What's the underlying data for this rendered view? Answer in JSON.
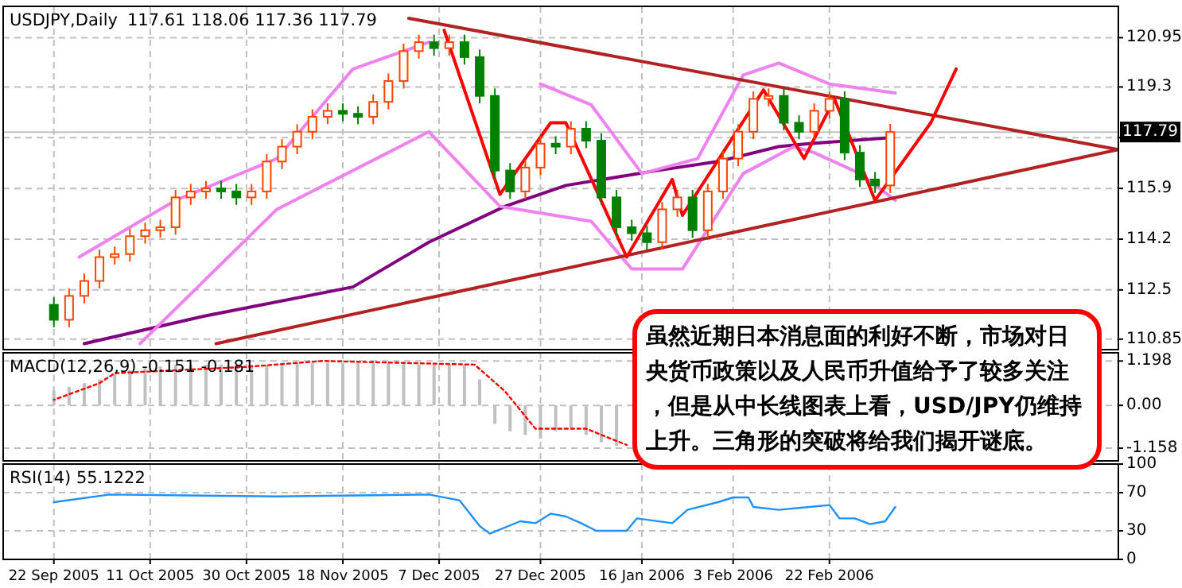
{
  "chart_data": [
    {
      "type": "candlestick",
      "title": "USDJPY,Daily",
      "subtitle": "117.61 118.06 117.36 117.79",
      "x": [
        "2005-09-22",
        "2005-09-25",
        "2005-09-28",
        "2005-10-01",
        "2005-10-04",
        "2005-10-07",
        "2005-10-10",
        "2005-10-13",
        "2005-10-16",
        "2005-10-19",
        "2005-10-22",
        "2005-10-25",
        "2005-10-28",
        "2005-10-31",
        "2005-11-03",
        "2005-11-06",
        "2005-11-09",
        "2005-11-12",
        "2005-11-15",
        "2005-11-18",
        "2005-11-21",
        "2005-11-24",
        "2005-11-27",
        "2005-11-30",
        "2005-12-03",
        "2005-12-06",
        "2005-12-09",
        "2005-12-12",
        "2005-12-15",
        "2005-12-18",
        "2005-12-21",
        "2005-12-24",
        "2005-12-27",
        "2005-12-30",
        "2006-01-02",
        "2006-01-05",
        "2006-01-08",
        "2006-01-11",
        "2006-01-14",
        "2006-01-17",
        "2006-01-20",
        "2006-01-23",
        "2006-01-26",
        "2006-01-29",
        "2006-02-01",
        "2006-02-04",
        "2006-02-07",
        "2006-02-10",
        "2006-02-13",
        "2006-02-16",
        "2006-02-19",
        "2006-02-22",
        "2006-02-25",
        "2006-02-28",
        "2006-03-03",
        "2006-03-06"
      ],
      "ohlc": [
        [
          112.0,
          112.25,
          111.25,
          111.5
        ],
        [
          111.5,
          112.55,
          111.25,
          112.3
        ],
        [
          112.3,
          113.05,
          112.05,
          112.8
        ],
        [
          112.8,
          113.85,
          112.55,
          113.6
        ],
        [
          113.6,
          113.95,
          113.35,
          113.7
        ],
        [
          113.7,
          114.55,
          113.45,
          114.3
        ],
        [
          114.3,
          114.75,
          114.05,
          114.5
        ],
        [
          114.5,
          114.85,
          114.25,
          114.6
        ],
        [
          114.6,
          115.85,
          114.35,
          115.6
        ],
        [
          115.6,
          116.05,
          115.35,
          115.8
        ],
        [
          115.8,
          116.15,
          115.55,
          115.9
        ],
        [
          115.9,
          116.15,
          115.55,
          115.8
        ],
        [
          115.8,
          116.05,
          115.35,
          115.6
        ],
        [
          115.6,
          116.05,
          115.35,
          115.8
        ],
        [
          115.8,
          117.05,
          115.55,
          116.8
        ],
        [
          116.8,
          117.55,
          116.55,
          117.3
        ],
        [
          117.3,
          118.05,
          117.05,
          117.8
        ],
        [
          117.8,
          118.55,
          117.55,
          118.3
        ],
        [
          118.3,
          118.75,
          118.05,
          118.5
        ],
        [
          118.5,
          118.75,
          118.15,
          118.4
        ],
        [
          118.4,
          118.65,
          118.05,
          118.3
        ],
        [
          118.3,
          119.05,
          118.05,
          118.8
        ],
        [
          118.8,
          119.75,
          118.55,
          119.5
        ],
        [
          119.5,
          120.75,
          119.25,
          120.5
        ],
        [
          120.5,
          121.05,
          120.25,
          120.8
        ],
        [
          120.8,
          121.05,
          120.35,
          120.6
        ],
        [
          120.6,
          121.05,
          120.35,
          120.8
        ],
        [
          120.8,
          121.05,
          120.05,
          120.3
        ],
        [
          120.3,
          120.55,
          118.75,
          119.0
        ],
        [
          119.0,
          119.25,
          116.25,
          116.5
        ],
        [
          116.5,
          116.75,
          115.55,
          115.8
        ],
        [
          115.8,
          116.85,
          115.55,
          116.6
        ],
        [
          116.6,
          117.65,
          116.35,
          117.4
        ],
        [
          117.4,
          117.65,
          117.05,
          117.3
        ],
        [
          117.3,
          118.15,
          117.05,
          117.9
        ],
        [
          117.9,
          118.15,
          117.25,
          117.5
        ],
        [
          117.5,
          117.75,
          115.35,
          115.6
        ],
        [
          115.6,
          115.85,
          114.35,
          114.6
        ],
        [
          114.6,
          114.85,
          114.15,
          114.4
        ],
        [
          114.4,
          114.65,
          113.85,
          114.1
        ],
        [
          114.1,
          115.45,
          113.85,
          115.2
        ],
        [
          115.2,
          115.85,
          114.95,
          115.6
        ],
        [
          115.6,
          115.85,
          114.25,
          114.5
        ],
        [
          114.5,
          116.05,
          114.25,
          115.8
        ],
        [
          115.8,
          117.15,
          115.55,
          116.9
        ],
        [
          116.9,
          118.05,
          116.65,
          117.8
        ],
        [
          117.8,
          119.15,
          117.55,
          118.9
        ],
        [
          118.9,
          119.25,
          118.65,
          119.0
        ],
        [
          119.0,
          119.25,
          117.85,
          118.1
        ],
        [
          118.1,
          118.35,
          117.55,
          117.8
        ],
        [
          117.8,
          118.75,
          117.55,
          118.5
        ],
        [
          118.5,
          119.15,
          118.25,
          118.9
        ],
        [
          118.9,
          119.15,
          116.85,
          117.1
        ],
        [
          117.1,
          117.35,
          115.95,
          116.2
        ],
        [
          116.2,
          116.45,
          115.75,
          116.0
        ],
        [
          116.0,
          118.06,
          115.75,
          117.79
        ]
      ],
      "series": [
        {
          "type": "line",
          "color": "#800080",
          "x": [
            "2005-09-28",
            "2005-10-21",
            "2005-11-20",
            "2005-12-05",
            "2005-12-20",
            "2006-01-01",
            "2006-01-19",
            "2006-01-31",
            "2006-02-12",
            "2006-02-18",
            "2006-03-06"
          ],
          "values": [
            110.7,
            111.6,
            112.6,
            114.1,
            115.3,
            116.0,
            116.5,
            116.8,
            117.3,
            117.4,
            117.6
          ]
        },
        {
          "type": "line",
          "color": "#ee82ee",
          "x": [
            "2005-09-27",
            "2005-10-16",
            "2005-11-05",
            "2005-11-20",
            "2005-12-05",
            "2005-12-15",
            "2005-12-27",
            "2006-01-06",
            "2006-01-16",
            "2006-01-27",
            "2006-02-05",
            "2006-02-12",
            "2006-02-22",
            "2006-03-07"
          ],
          "values": [
            113.6,
            115.5,
            116.9,
            119.9,
            120.8,
            null,
            119.4,
            118.7,
            116.4,
            116.9,
            119.7,
            120.1,
            119.4,
            119.1
          ]
        },
        {
          "type": "line",
          "color": "#ee82ee",
          "x": [
            "2005-10-09",
            "2005-11-05",
            "2005-12-05",
            "2005-12-19",
            "2006-01-06",
            "2006-01-14",
            "2006-01-24",
            "2006-02-05",
            "2006-02-15",
            "2006-02-19",
            "2006-02-28",
            "2006-03-07"
          ],
          "values": [
            110.7,
            115.2,
            117.8,
            115.3,
            114.8,
            113.2,
            113.2,
            116.4,
            117.3,
            117.1,
            116.4,
            115.5
          ]
        },
        {
          "type": "line",
          "color": "#b22222",
          "x": [
            "2005-12-01",
            "2006-04-20"
          ],
          "values": [
            121.6,
            117.2
          ]
        },
        {
          "type": "line",
          "color": "#b22222",
          "x": [
            "2005-10-24",
            "2006-04-20"
          ],
          "values": [
            110.7,
            117.2
          ]
        },
        {
          "type": "line",
          "color": "#ff0000",
          "x": [
            "2005-12-08",
            "2005-12-19",
            "2005-12-29",
            "2006-01-01",
            "2006-01-13",
            "2006-01-22",
            "2006-01-24",
            "2006-02-09",
            "2006-02-17",
            "2006-02-23",
            "2006-03-03",
            "2006-03-14",
            "2006-03-19"
          ],
          "values": [
            121.2,
            115.7,
            118.1,
            118.1,
            113.6,
            116.2,
            115.0,
            119.2,
            116.9,
            118.9,
            115.5,
            118.1,
            119.9
          ]
        }
      ],
      "xlim": [
        "2005-09-12",
        "2006-04-20"
      ],
      "xticks": [
        {
          "value": "2005-09-22",
          "label": null
        },
        {
          "value": "2005-10-11",
          "label": null
        },
        {
          "value": "2005-10-30",
          "label": null
        },
        {
          "value": "2005-11-18",
          "label": null
        },
        {
          "value": "2005-12-07",
          "label": null
        },
        {
          "value": "2005-12-27",
          "label": null
        },
        {
          "value": "2006-01-16",
          "label": null
        },
        {
          "value": "2006-02-03",
          "label": null
        },
        {
          "value": "2006-02-22",
          "label": null
        }
      ],
      "ylim": [
        110.5,
        122.0
      ],
      "yticks": [
        110.85,
        112.5,
        114.2,
        115.9,
        {
          "value": 117.6,
          "label": null
        },
        119.3,
        120.95
      ],
      "ref_lines": [
        {
          "axis": "y",
          "value": 117.79,
          "label": "117.79",
          "color": "#c0c0c0"
        }
      ],
      "annotations": [
        "虽然近期日本消息面的利好不断，市场对日央货币政策以及人民币升值给予了较多关注，但是从中长线图表上看，USD/JPY仍维持上升。三角形的突破将给我们揭开谜底。"
      ],
      "grid": true,
      "tick_labels": "y"
    },
    {
      "type": "bar",
      "title": "MACD(12,26,9) -0.151 -0.181",
      "x": [
        "2005-09-22",
        "2005-09-25",
        "2005-09-28",
        "2005-10-01",
        "2005-10-04",
        "2005-10-07",
        "2005-10-10",
        "2005-10-13",
        "2005-10-16",
        "2005-10-19",
        "2005-10-22",
        "2005-10-25",
        "2005-10-28",
        "2005-10-31",
        "2005-11-03",
        "2005-11-06",
        "2005-11-09",
        "2005-11-12",
        "2005-11-15",
        "2005-11-18",
        "2005-11-21",
        "2005-11-24",
        "2005-11-27",
        "2005-11-30",
        "2005-12-03",
        "2005-12-06",
        "2005-12-09",
        "2005-12-12",
        "2005-12-15",
        "2005-12-18",
        "2005-12-21",
        "2005-12-24",
        "2005-12-27",
        "2005-12-30",
        "2006-01-02",
        "2006-01-05",
        "2006-01-08",
        "2006-01-11"
      ],
      "series": [
        {
          "type": "bar",
          "color": "#c0c0c0",
          "values": [
            0.4,
            0.5,
            0.6,
            0.7,
            0.85,
            0.95,
            1.0,
            1.05,
            1.1,
            1.1,
            1.1,
            1.1,
            1.1,
            1.1,
            1.1,
            1.15,
            1.15,
            1.15,
            1.15,
            1.15,
            1.15,
            1.15,
            1.15,
            1.15,
            1.1,
            1.1,
            1.1,
            1.1,
            0.7,
            -0.5,
            -0.7,
            -0.8,
            -0.9,
            -0.7,
            -0.6,
            -0.8,
            -1.0,
            -1.1
          ]
        },
        {
          "type": "line",
          "color": "#ff0000",
          "line_style": "dotted",
          "x": [
            "2005-09-22",
            "2005-10-01",
            "2005-10-04",
            "2005-10-30",
            "2005-11-14",
            "2005-12-14",
            "2005-12-20",
            "2005-12-26",
            "2006-01-05",
            "2006-01-13"
          ],
          "values": [
            0.15,
            0.6,
            0.87,
            1.04,
            1.2,
            1.1,
            0.38,
            -0.63,
            -0.63,
            -1.07
          ]
        }
      ],
      "xlim": [
        "2005-09-12",
        "2006-04-20"
      ],
      "xticks": [
        {
          "value": "2005-09-22",
          "label": null
        },
        {
          "value": "2005-10-11",
          "label": null
        },
        {
          "value": "2005-10-30",
          "label": null
        },
        {
          "value": "2005-11-18",
          "label": null
        },
        {
          "value": "2005-12-07",
          "label": null
        },
        {
          "value": "2005-12-27",
          "label": null
        },
        {
          "value": "2006-01-16",
          "label": null
        },
        {
          "value": "2006-02-03",
          "label": null
        },
        {
          "value": "2006-02-22",
          "label": null
        }
      ],
      "ylim": [
        -1.5,
        1.42
      ],
      "yticks": [
        1.198,
        {
          "value": 0,
          "label": "0.00"
        },
        -1.158
      ],
      "grid": true,
      "tick_labels": "y"
    },
    {
      "type": "line",
      "title": "RSI(14) 55.1222",
      "series": [
        {
          "color": "#1e90ff",
          "x": [
            "2005-09-22",
            "2005-10-03",
            "2005-11-05",
            "2005-12-05",
            "2005-12-11",
            "2005-12-15",
            "2005-12-17",
            "2005-12-23",
            "2005-12-26",
            "2005-12-29",
            "2006-01-01",
            "2006-01-04",
            "2006-01-07",
            "2006-01-13",
            "2006-01-15",
            "2006-01-22",
            "2006-01-25",
            "2006-01-31",
            "2006-02-03",
            "2006-02-06",
            "2006-02-07",
            "2006-02-12",
            "2006-02-18",
            "2006-02-22",
            "2006-02-24",
            "2006-02-27",
            "2006-03-02",
            "2006-03-05",
            "2006-03-07"
          ],
          "values": [
            60,
            68,
            66,
            68,
            62,
            35,
            27,
            40,
            38,
            48,
            45,
            38,
            30,
            30,
            43,
            38,
            52,
            60,
            65,
            65,
            55,
            52,
            55,
            57,
            43,
            43,
            37,
            40,
            55
          ]
        }
      ],
      "xlim": [
        "2005-09-12",
        "2006-04-20"
      ],
      "xticks": [
        {
          "value": "2005-09-22",
          "label": "22 Sep 2005"
        },
        {
          "value": "2005-10-11",
          "label": "11 Oct 2005"
        },
        {
          "value": "2005-10-30",
          "label": "30 Oct 2005"
        },
        {
          "value": "2005-11-18",
          "label": "18 Nov 2005"
        },
        {
          "value": "2005-12-07",
          "label": "7 Dec 2005"
        },
        {
          "value": "2005-12-27",
          "label": "27 Dec 2005"
        },
        {
          "value": "2006-01-16",
          "label": "16 Jan 2006"
        },
        {
          "value": "2006-02-03",
          "label": "3 Feb 2006"
        },
        {
          "value": "2006-02-22",
          "label": "22 Feb 2006"
        }
      ],
      "ylim": [
        0,
        100
      ],
      "yticks": [
        0,
        30,
        70,
        100
      ],
      "grid": true
    }
  ]
}
